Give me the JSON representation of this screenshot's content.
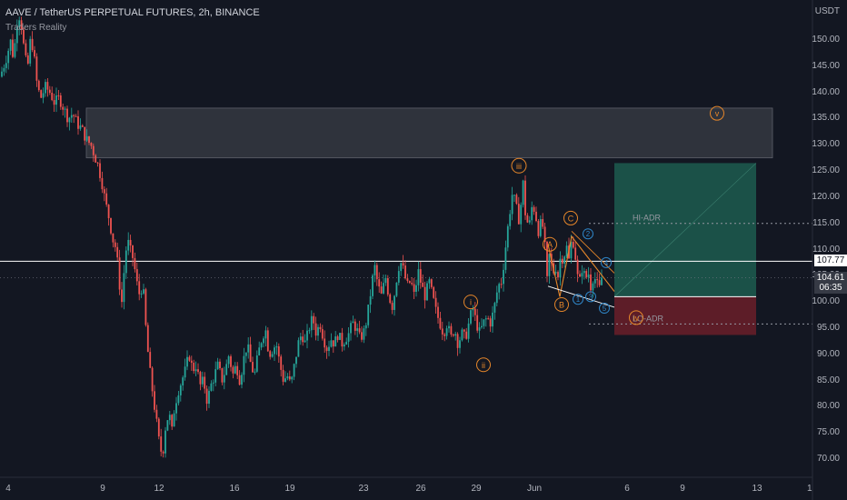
{
  "header": {
    "symbol": "AAVE / TetherUS PERPETUAL FUTURES, 2h, BINANCE",
    "indicator": "Traders Reality"
  },
  "colors": {
    "background": "#131722",
    "up": "#26a69a",
    "down": "#ef5350",
    "wave": "#e5862a",
    "subwave": "#2f86c8",
    "target_zone": "#1d5c4f",
    "stop_zone": "#6b1e29",
    "supply_zone": "#3a3d46"
  },
  "chart_data": {
    "type": "candlestick",
    "y_unit": "USDT",
    "ylim": [
      67,
      158
    ],
    "y_ticks": [
      150,
      145,
      140,
      135,
      130,
      125,
      120,
      115,
      110,
      105,
      100,
      95,
      90,
      85,
      80,
      75,
      70
    ],
    "x_ticks": [
      "4",
      "9",
      "12",
      "16",
      "19",
      "23",
      "26",
      "29",
      "Jun",
      "6",
      "9",
      "13",
      "1"
    ],
    "grid": false,
    "current_price": 104.61,
    "countdown": "06:35",
    "level_line": 107.77,
    "levels": [
      {
        "label": "HI-ADR",
        "value": 115
      },
      {
        "label": "LO-ADR",
        "value": 95.8
      }
    ],
    "zones": [
      {
        "name": "supply",
        "from": 127.5,
        "to": 137
      },
      {
        "name": "target",
        "from": 101,
        "to": 126.5
      },
      {
        "name": "stop",
        "from": 93.7,
        "to": 101
      }
    ],
    "wave_labels": [
      {
        "label": "i",
        "value": 100
      },
      {
        "label": "ii",
        "value": 88
      },
      {
        "label": "iii",
        "value": 126
      },
      {
        "label": "iv",
        "value": 97
      },
      {
        "label": "v",
        "value": 136
      },
      {
        "label": "A",
        "value": 111
      },
      {
        "label": "B",
        "value": 99.5
      },
      {
        "label": "C",
        "value": 116
      },
      {
        "label": "1",
        "value": 100.5
      },
      {
        "label": "2",
        "value": 113
      },
      {
        "label": "3",
        "value": 101
      },
      {
        "label": "4",
        "value": 107.5
      },
      {
        "label": "5",
        "value": 98.8
      }
    ],
    "price_path": [
      [
        0,
        143
      ],
      [
        6,
        146
      ],
      [
        12,
        150
      ],
      [
        15,
        146
      ],
      [
        18,
        153
      ],
      [
        22,
        155
      ],
      [
        26,
        149
      ],
      [
        30,
        144
      ],
      [
        34,
        151
      ],
      [
        38,
        146
      ],
      [
        41,
        141
      ],
      [
        45,
        139
      ],
      [
        50,
        141
      ],
      [
        55,
        140
      ],
      [
        60,
        138
      ],
      [
        65,
        139
      ],
      [
        70,
        137
      ],
      [
        75,
        135
      ],
      [
        80,
        136
      ],
      [
        85,
        134
      ],
      [
        90,
        133
      ],
      [
        95,
        131
      ],
      [
        100,
        130
      ],
      [
        104,
        128
      ],
      [
        108,
        126
      ],
      [
        112,
        123
      ],
      [
        116,
        119
      ],
      [
        120,
        116
      ],
      [
        124,
        112
      ],
      [
        128,
        110
      ],
      [
        131,
        104
      ],
      [
        134,
        100
      ],
      [
        137,
        107
      ],
      [
        140,
        112
      ],
      [
        143,
        110
      ],
      [
        147,
        108
      ],
      [
        150,
        104
      ],
      [
        154,
        101
      ],
      [
        157,
        104
      ],
      [
        160,
        96
      ],
      [
        164,
        88
      ],
      [
        167,
        84
      ],
      [
        170,
        80
      ],
      [
        173,
        76
      ],
      [
        176,
        72
      ],
      [
        179,
        71
      ],
      [
        182,
        76
      ],
      [
        186,
        79
      ],
      [
        189,
        75
      ],
      [
        192,
        80
      ],
      [
        196,
        83
      ],
      [
        200,
        85
      ],
      [
        204,
        87
      ],
      [
        208,
        90
      ],
      [
        212,
        87
      ],
      [
        216,
        88
      ],
      [
        220,
        84
      ],
      [
        224,
        85
      ],
      [
        228,
        81
      ],
      [
        232,
        84
      ],
      [
        236,
        86
      ],
      [
        240,
        88
      ],
      [
        244,
        85
      ],
      [
        248,
        87
      ],
      [
        252,
        90
      ],
      [
        256,
        86
      ],
      [
        260,
        88
      ],
      [
        264,
        85
      ],
      [
        268,
        89
      ],
      [
        272,
        92
      ],
      [
        276,
        88
      ],
      [
        280,
        86
      ],
      [
        284,
        90
      ],
      [
        288,
        93
      ],
      [
        292,
        95
      ],
      [
        296,
        90
      ],
      [
        300,
        91
      ],
      [
        304,
        92
      ],
      [
        308,
        88
      ],
      [
        312,
        85
      ],
      [
        316,
        86
      ],
      [
        320,
        84
      ],
      [
        324,
        88
      ],
      [
        328,
        92
      ],
      [
        332,
        94
      ],
      [
        336,
        92
      ],
      [
        340,
        95
      ],
      [
        344,
        97
      ],
      [
        348,
        94
      ],
      [
        352,
        96
      ],
      [
        356,
        93
      ],
      [
        360,
        91
      ],
      [
        364,
        93
      ],
      [
        368,
        92
      ],
      [
        372,
        94
      ],
      [
        376,
        92
      ],
      [
        380,
        93
      ],
      [
        384,
        94
      ],
      [
        388,
        96
      ],
      [
        392,
        95
      ],
      [
        396,
        93
      ],
      [
        400,
        94
      ],
      [
        404,
        97
      ],
      [
        408,
        102
      ],
      [
        412,
        107
      ],
      [
        416,
        103
      ],
      [
        420,
        101
      ],
      [
        424,
        105
      ],
      [
        428,
        101
      ],
      [
        432,
        99
      ],
      [
        436,
        104
      ],
      [
        440,
        108
      ],
      [
        444,
        106
      ],
      [
        448,
        103
      ],
      [
        452,
        104
      ],
      [
        456,
        101
      ],
      [
        460,
        106
      ],
      [
        464,
        103
      ],
      [
        468,
        101
      ],
      [
        472,
        104
      ],
      [
        476,
        101
      ],
      [
        480,
        98
      ],
      [
        484,
        96
      ],
      [
        488,
        94
      ],
      [
        492,
        96
      ],
      [
        496,
        93
      ],
      [
        500,
        95
      ],
      [
        504,
        92
      ],
      [
        508,
        94
      ],
      [
        512,
        93
      ],
      [
        516,
        96
      ],
      [
        520,
        99
      ],
      [
        524,
        96
      ],
      [
        528,
        94
      ],
      [
        532,
        96
      ],
      [
        536,
        97
      ],
      [
        540,
        96
      ],
      [
        544,
        99
      ],
      [
        548,
        103
      ],
      [
        552,
        104
      ],
      [
        556,
        110
      ],
      [
        560,
        116
      ],
      [
        564,
        121
      ],
      [
        568,
        118
      ],
      [
        572,
        115
      ],
      [
        575,
        124
      ],
      [
        578,
        117
      ],
      [
        582,
        114
      ],
      [
        586,
        119
      ],
      [
        590,
        116
      ],
      [
        593,
        113
      ],
      [
        596,
        116
      ],
      [
        599,
        112
      ],
      [
        602,
        104
      ],
      [
        605,
        110
      ],
      [
        608,
        105
      ],
      [
        611,
        107
      ],
      [
        614,
        105
      ],
      [
        617,
        109
      ],
      [
        620,
        108
      ],
      [
        623,
        111
      ],
      [
        626,
        108
      ],
      [
        629,
        112
      ],
      [
        632,
        111
      ],
      [
        635,
        105
      ],
      [
        638,
        104
      ],
      [
        641,
        107
      ],
      [
        644,
        104
      ],
      [
        647,
        106
      ],
      [
        650,
        103
      ],
      [
        653,
        105
      ],
      [
        656,
        104
      ],
      [
        659,
        102
      ],
      [
        662,
        104.6
      ]
    ]
  }
}
